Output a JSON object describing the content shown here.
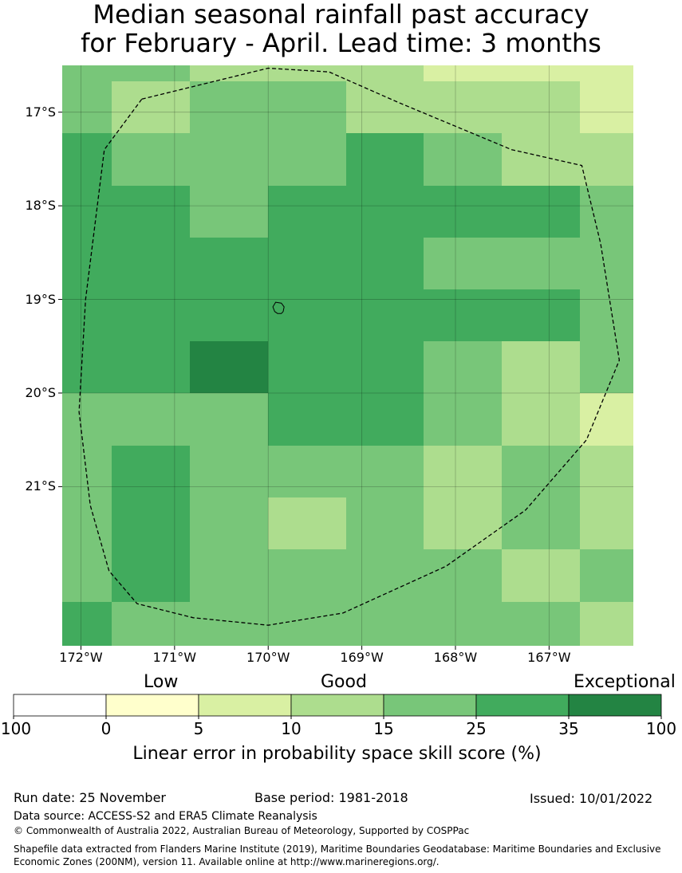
{
  "title_line1": "Median seasonal rainfall past accuracy",
  "title_line2": "for February - April. Lead time: 3 months",
  "map": {
    "lon_range": [
      -172.2,
      -166.1
    ],
    "lat_range": [
      -22.7,
      -16.5
    ],
    "lon_ticks": [
      -172,
      -171,
      -170,
      -169,
      -168,
      -167
    ],
    "lat_ticks": [
      -17,
      -18,
      -19,
      -20,
      -21
    ],
    "lon_tick_labels": [
      "172°W",
      "171°W",
      "170°W",
      "169°W",
      "168°W",
      "167°W"
    ],
    "lat_tick_labels": [
      "17°S",
      "18°S",
      "19°S",
      "20°S",
      "21°S"
    ],
    "grid_rows": [
      [
        4,
        4,
        3,
        3,
        3,
        2,
        2,
        2
      ],
      [
        4,
        3,
        4,
        4,
        3,
        3,
        3,
        2
      ],
      [
        5,
        4,
        4,
        4,
        5,
        4,
        3,
        3
      ],
      [
        5,
        5,
        4,
        5,
        5,
        5,
        5,
        4
      ],
      [
        5,
        5,
        5,
        5,
        5,
        4,
        4,
        4
      ],
      [
        5,
        5,
        5,
        5,
        5,
        5,
        5,
        4
      ],
      [
        5,
        5,
        6,
        5,
        5,
        4,
        3,
        4
      ],
      [
        4,
        4,
        4,
        5,
        5,
        4,
        3,
        2
      ],
      [
        4,
        5,
        4,
        4,
        4,
        3,
        4,
        3
      ],
      [
        4,
        5,
        4,
        3,
        4,
        3,
        4,
        3
      ],
      [
        4,
        5,
        4,
        4,
        4,
        4,
        3,
        4
      ],
      [
        5,
        4,
        4,
        4,
        4,
        4,
        4,
        3
      ]
    ],
    "boundary_lonlat": [
      [
        -171.35,
        -16.86
      ],
      [
        -170.0,
        -16.53
      ],
      [
        -169.35,
        -16.57
      ],
      [
        -168.6,
        -16.9
      ],
      [
        -167.4,
        -17.4
      ],
      [
        -166.65,
        -17.57
      ],
      [
        -166.45,
        -18.4
      ],
      [
        -166.25,
        -19.65
      ],
      [
        -166.6,
        -20.5
      ],
      [
        -167.25,
        -21.25
      ],
      [
        -168.1,
        -21.85
      ],
      [
        -169.2,
        -22.35
      ],
      [
        -170.0,
        -22.48
      ],
      [
        -170.8,
        -22.4
      ],
      [
        -171.4,
        -22.25
      ],
      [
        -171.7,
        -21.9
      ],
      [
        -171.9,
        -21.2
      ],
      [
        -172.02,
        -20.2
      ],
      [
        -171.95,
        -19.0
      ],
      [
        -171.75,
        -17.4
      ],
      [
        -171.35,
        -16.86
      ]
    ],
    "island_lonlat": [
      [
        -169.92,
        -19.03
      ],
      [
        -169.86,
        -19.04
      ],
      [
        -169.83,
        -19.08
      ],
      [
        -169.84,
        -19.13
      ],
      [
        -169.86,
        -19.15
      ],
      [
        -169.9,
        -19.15
      ],
      [
        -169.93,
        -19.13
      ],
      [
        -169.95,
        -19.08
      ]
    ]
  },
  "colorbar": {
    "bounds": [
      "100",
      "0",
      "5",
      "10",
      "15",
      "25",
      "35",
      "100"
    ],
    "colors": [
      "#ffffff",
      "#ffffcc",
      "#d9f0a3",
      "#addd8e",
      "#78c679",
      "#41ab5d",
      "#238443"
    ],
    "category_labels": [
      "Low",
      "Good",
      "Exceptional"
    ],
    "axis_label": "Linear error in probability space skill score (%)"
  },
  "footer": {
    "run_date": "Run date: 25 November",
    "base_period": "Base period: 1981-2018",
    "issued": "Issued: 10/01/2022",
    "data_source": "Data source: ACCESS-S2 and ERA5 Climate Reanalysis",
    "copyright": "© Commonwealth of Australia 2022, Australian Bureau of Meteorology, Supported by COSPPac",
    "shapefile": "Shapefile data extracted from Flanders Marine Institute (2019), Maritime Boundaries Geodatabase: Maritime Boundaries and Exclusive Economic Zones (200NM), version 11. Available online at http://www.marineregions.org/."
  }
}
